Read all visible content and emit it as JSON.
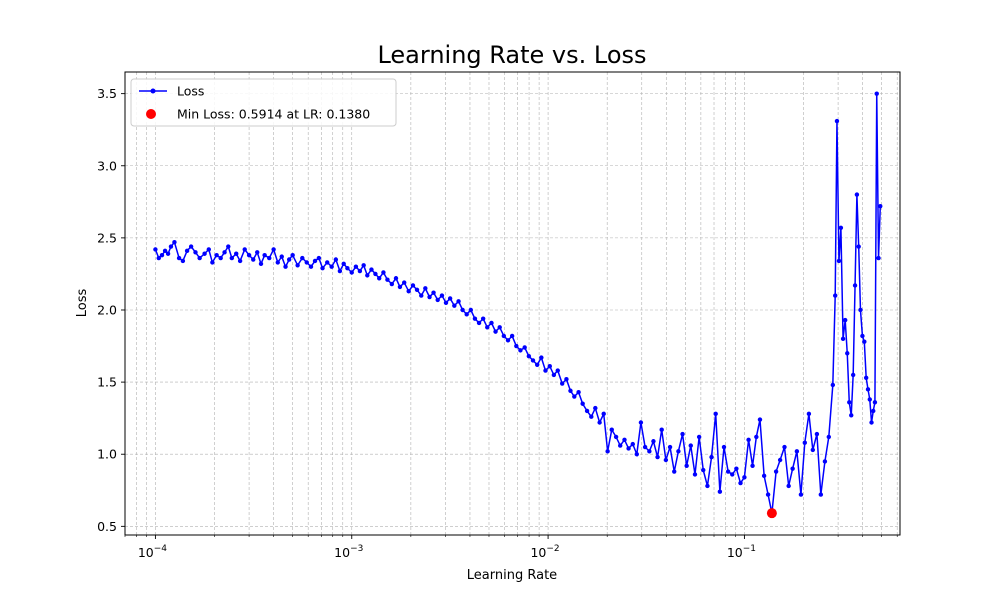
{
  "chart_data": {
    "type": "line",
    "title": "Learning Rate vs. Loss",
    "xlabel": "Learning Rate",
    "ylabel": "Loss",
    "xscale": "log",
    "xlim": [
      7e-05,
      0.62
    ],
    "ylim": [
      0.44,
      3.65
    ],
    "grid": true,
    "legend_position": "top-left",
    "x_ticks": [
      {
        "value": 0.0001,
        "base": "10",
        "exp": "−4"
      },
      {
        "value": 0.001,
        "base": "10",
        "exp": "−3"
      },
      {
        "value": 0.01,
        "base": "10",
        "exp": "−2"
      },
      {
        "value": 0.1,
        "base": "10",
        "exp": "−1"
      }
    ],
    "y_ticks": [
      {
        "value": 0.5,
        "label": "0.5"
      },
      {
        "value": 1.0,
        "label": "1.0"
      },
      {
        "value": 1.5,
        "label": "1.5"
      },
      {
        "value": 2.0,
        "label": "2.0"
      },
      {
        "value": 2.5,
        "label": "2.5"
      },
      {
        "value": 3.0,
        "label": "3.0"
      },
      {
        "value": 3.5,
        "label": "3.5"
      }
    ],
    "series": [
      {
        "name": "Loss",
        "color": "#0000ff",
        "marker": "circle",
        "points": [
          [
            0.0001,
            2.42
          ],
          [
            0.000104,
            2.36
          ],
          [
            0.000108,
            2.38
          ],
          [
            0.000112,
            2.41
          ],
          [
            0.000116,
            2.39
          ],
          [
            0.00012,
            2.44
          ],
          [
            0.000125,
            2.47
          ],
          [
            0.000132,
            2.36
          ],
          [
            0.000138,
            2.34
          ],
          [
            0.000145,
            2.41
          ],
          [
            0.000152,
            2.44
          ],
          [
            0.00016,
            2.4
          ],
          [
            0.000168,
            2.36
          ],
          [
            0.000178,
            2.39
          ],
          [
            0.000187,
            2.42
          ],
          [
            0.000195,
            2.33
          ],
          [
            0.000205,
            2.38
          ],
          [
            0.000215,
            2.36
          ],
          [
            0.000225,
            2.4
          ],
          [
            0.000235,
            2.44
          ],
          [
            0.000245,
            2.36
          ],
          [
            0.000258,
            2.39
          ],
          [
            0.00027,
            2.34
          ],
          [
            0.000285,
            2.42
          ],
          [
            0.0003,
            2.38
          ],
          [
            0.000315,
            2.35
          ],
          [
            0.00033,
            2.4
          ],
          [
            0.000345,
            2.32
          ],
          [
            0.00036,
            2.38
          ],
          [
            0.00038,
            2.36
          ],
          [
            0.0004,
            2.42
          ],
          [
            0.00042,
            2.33
          ],
          [
            0.00044,
            2.37
          ],
          [
            0.00046,
            2.3
          ],
          [
            0.00048,
            2.35
          ],
          [
            0.0005,
            2.38
          ],
          [
            0.00053,
            2.31
          ],
          [
            0.00056,
            2.36
          ],
          [
            0.00059,
            2.33
          ],
          [
            0.00062,
            2.3
          ],
          [
            0.00065,
            2.34
          ],
          [
            0.00068,
            2.36
          ],
          [
            0.00071,
            2.29
          ],
          [
            0.00075,
            2.33
          ],
          [
            0.00079,
            2.3
          ],
          [
            0.00083,
            2.35
          ],
          [
            0.00087,
            2.27
          ],
          [
            0.00091,
            2.32
          ],
          [
            0.00095,
            2.29
          ],
          [
            0.001,
            2.26
          ],
          [
            0.00105,
            2.3
          ],
          [
            0.0011,
            2.27
          ],
          [
            0.00115,
            2.31
          ],
          [
            0.0012,
            2.24
          ],
          [
            0.00126,
            2.28
          ],
          [
            0.00132,
            2.25
          ],
          [
            0.00138,
            2.22
          ],
          [
            0.00145,
            2.26
          ],
          [
            0.00152,
            2.21
          ],
          [
            0.0016,
            2.18
          ],
          [
            0.00168,
            2.22
          ],
          [
            0.00176,
            2.16
          ],
          [
            0.00185,
            2.19
          ],
          [
            0.00195,
            2.13
          ],
          [
            0.00205,
            2.17
          ],
          [
            0.00215,
            2.14
          ],
          [
            0.00226,
            2.1
          ],
          [
            0.00237,
            2.15
          ],
          [
            0.00249,
            2.09
          ],
          [
            0.00261,
            2.12
          ],
          [
            0.00274,
            2.07
          ],
          [
            0.00288,
            2.1
          ],
          [
            0.00302,
            2.05
          ],
          [
            0.00317,
            2.08
          ],
          [
            0.00333,
            2.03
          ],
          [
            0.0035,
            2.06
          ],
          [
            0.00367,
            2.0
          ],
          [
            0.00385,
            1.97
          ],
          [
            0.00404,
            2.0
          ],
          [
            0.00424,
            1.94
          ],
          [
            0.00445,
            1.91
          ],
          [
            0.00467,
            1.94
          ],
          [
            0.0049,
            1.88
          ],
          [
            0.00515,
            1.91
          ],
          [
            0.0054,
            1.85
          ],
          [
            0.00567,
            1.88
          ],
          [
            0.00595,
            1.82
          ],
          [
            0.00625,
            1.79
          ],
          [
            0.00656,
            1.82
          ],
          [
            0.00689,
            1.75
          ],
          [
            0.00723,
            1.72
          ],
          [
            0.0076,
            1.74
          ],
          [
            0.00798,
            1.68
          ],
          [
            0.00838,
            1.65
          ],
          [
            0.0088,
            1.62
          ],
          [
            0.00924,
            1.67
          ],
          [
            0.0097,
            1.58
          ],
          [
            0.0102,
            1.61
          ],
          [
            0.0107,
            1.55
          ],
          [
            0.0112,
            1.58
          ],
          [
            0.0118,
            1.49
          ],
          [
            0.0124,
            1.52
          ],
          [
            0.013,
            1.44
          ],
          [
            0.0136,
            1.4
          ],
          [
            0.0143,
            1.43
          ],
          [
            0.015,
            1.35
          ],
          [
            0.0158,
            1.3
          ],
          [
            0.0166,
            1.26
          ],
          [
            0.0174,
            1.32
          ],
          [
            0.0183,
            1.22
          ],
          [
            0.0192,
            1.28
          ],
          [
            0.0201,
            1.02
          ],
          [
            0.0211,
            1.17
          ],
          [
            0.0222,
            1.12
          ],
          [
            0.0233,
            1.06
          ],
          [
            0.0245,
            1.1
          ],
          [
            0.0257,
            1.04
          ],
          [
            0.027,
            1.07
          ],
          [
            0.0283,
            1.0
          ],
          [
            0.0297,
            1.22
          ],
          [
            0.0312,
            1.05
          ],
          [
            0.0328,
            1.02
          ],
          [
            0.0344,
            1.09
          ],
          [
            0.0361,
            0.98
          ],
          [
            0.0379,
            1.17
          ],
          [
            0.0398,
            0.96
          ],
          [
            0.0418,
            1.05
          ],
          [
            0.0439,
            0.88
          ],
          [
            0.0461,
            1.02
          ],
          [
            0.0484,
            1.14
          ],
          [
            0.0508,
            0.92
          ],
          [
            0.0533,
            1.06
          ],
          [
            0.056,
            0.86
          ],
          [
            0.0588,
            1.12
          ],
          [
            0.0617,
            0.89
          ],
          [
            0.0648,
            0.78
          ],
          [
            0.068,
            0.98
          ],
          [
            0.0714,
            1.28
          ],
          [
            0.075,
            0.74
          ],
          [
            0.0787,
            1.05
          ],
          [
            0.0826,
            0.88
          ],
          [
            0.0867,
            0.86
          ],
          [
            0.091,
            0.9
          ],
          [
            0.0955,
            0.8
          ],
          [
            0.1,
            0.84
          ],
          [
            0.105,
            1.1
          ],
          [
            0.11,
            0.92
          ],
          [
            0.115,
            1.12
          ],
          [
            0.12,
            1.24
          ],
          [
            0.126,
            0.85
          ],
          [
            0.132,
            0.72
          ],
          [
            0.138,
            0.5914
          ],
          [
            0.145,
            0.88
          ],
          [
            0.152,
            0.96
          ],
          [
            0.16,
            1.05
          ],
          [
            0.168,
            0.78
          ],
          [
            0.176,
            0.9
          ],
          [
            0.185,
            1.02
          ],
          [
            0.194,
            0.72
          ],
          [
            0.203,
            1.08
          ],
          [
            0.213,
            1.28
          ],
          [
            0.223,
            1.03
          ],
          [
            0.234,
            1.14
          ],
          [
            0.245,
            0.72
          ],
          [
            0.257,
            0.95
          ],
          [
            0.269,
            1.12
          ],
          [
            0.282,
            1.48
          ],
          [
            0.29,
            2.1
          ],
          [
            0.296,
            3.31
          ],
          [
            0.303,
            2.34
          ],
          [
            0.31,
            2.57
          ],
          [
            0.318,
            1.8
          ],
          [
            0.326,
            1.93
          ],
          [
            0.334,
            1.7
          ],
          [
            0.342,
            1.36
          ],
          [
            0.35,
            1.27
          ],
          [
            0.358,
            1.55
          ],
          [
            0.366,
            2.17
          ],
          [
            0.374,
            2.8
          ],
          [
            0.382,
            2.44
          ],
          [
            0.39,
            2.0
          ],
          [
            0.399,
            1.82
          ],
          [
            0.408,
            1.78
          ],
          [
            0.417,
            1.53
          ],
          [
            0.426,
            1.45
          ],
          [
            0.435,
            1.38
          ],
          [
            0.444,
            1.22
          ],
          [
            0.453,
            1.3
          ],
          [
            0.462,
            1.36
          ],
          [
            0.472,
            3.5
          ],
          [
            0.482,
            2.36
          ],
          [
            0.492,
            2.72
          ]
        ]
      }
    ],
    "min_point": {
      "name": "Min Loss: 0.5914 at LR: 0.1380",
      "x": 0.138,
      "y": 0.5914,
      "color": "#ff0000"
    }
  }
}
